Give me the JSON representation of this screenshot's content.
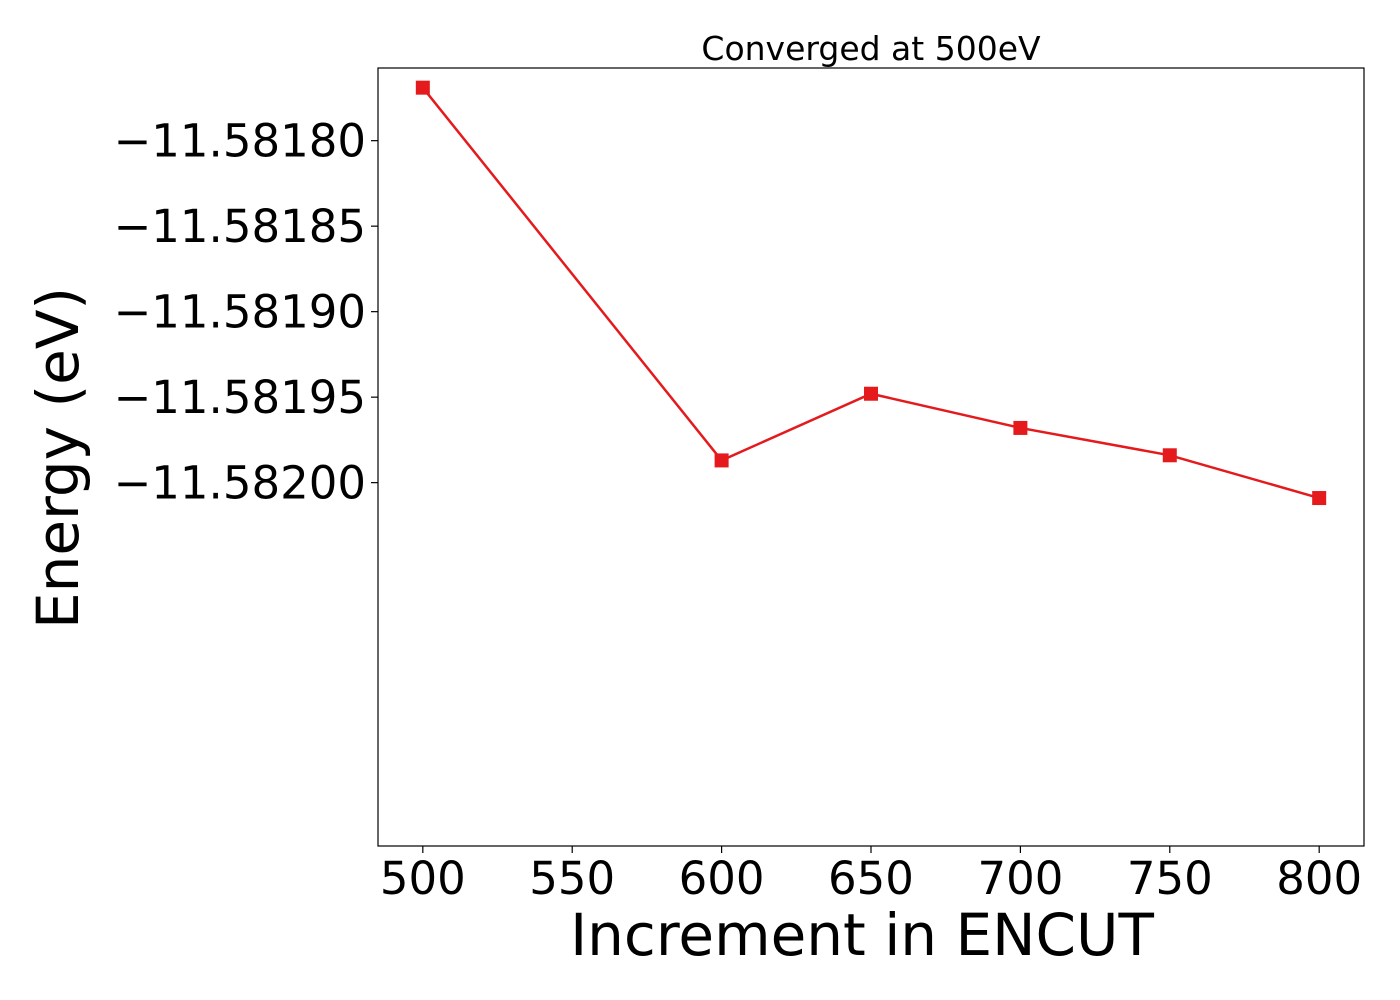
{
  "chart_data": {
    "type": "line",
    "title": "Converged at 500eV",
    "xlabel": "Increment in ENCUT",
    "ylabel": "Energy (eV)",
    "x": [
      500,
      600,
      650,
      700,
      750,
      800
    ],
    "series": [
      {
        "values": [
          -11.581769,
          -11.581987,
          -11.581948,
          -11.581968,
          -11.581984,
          -11.582009
        ],
        "color": "#e41a1c",
        "marker": "square"
      }
    ],
    "xlim": [
      485,
      815
    ],
    "ylim": [
      -11.5822125,
      -11.5817575
    ],
    "xticks": [
      500,
      550,
      600,
      650,
      700,
      750,
      800
    ],
    "xtick_labels": [
      "500",
      "550",
      "600",
      "650",
      "700",
      "750",
      "800"
    ],
    "yticks": [
      -11.5818,
      -11.58185,
      -11.5819,
      -11.58195,
      -11.582
    ],
    "ytick_labels": [
      "−11.58180",
      "−11.58185",
      "−11.58190",
      "−11.58195",
      "−11.58200"
    ],
    "grid": false,
    "legend": "none"
  }
}
